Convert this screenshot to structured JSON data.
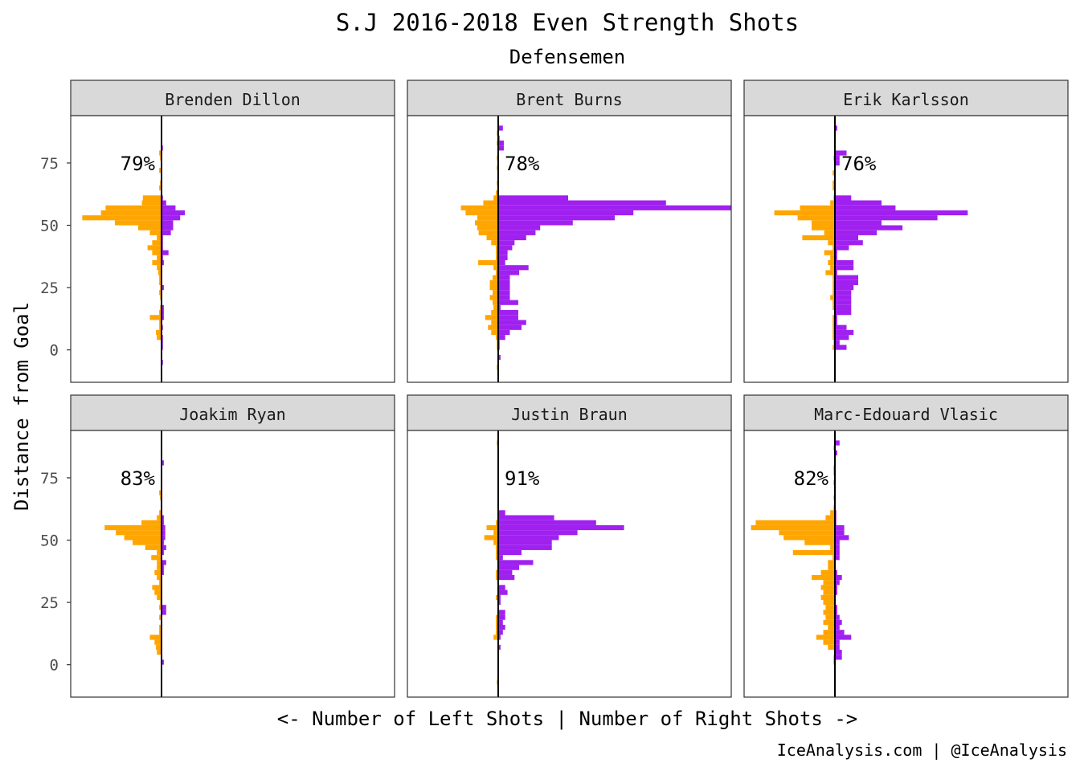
{
  "chart_data": {
    "type": "bar",
    "orientation": "horizontal",
    "title": "S.J 2016-2018 Even Strength Shots",
    "subtitle": "Defensemen",
    "ylabel": "Distance from Goal",
    "xlabel": "<- Number of Left Shots | Number of Right Shots ->",
    "caption": "IceAnalysis.com | @IceAnalysis",
    "y_ticks": [
      0,
      25,
      50,
      75
    ],
    "ylim": [
      -13,
      94
    ],
    "colors": {
      "left": "#FFA500",
      "right": "#A020F0"
    },
    "panels": [
      {
        "player": "Brenden Dillon",
        "pct": "79%",
        "bins": [
          {
            "y": 81,
            "l": 0,
            "r": 0.3
          },
          {
            "y": 79,
            "l": 0.5,
            "r": 0
          },
          {
            "y": 77,
            "l": 0.3,
            "r": 0
          },
          {
            "y": 72,
            "l": 0.5,
            "r": 0
          },
          {
            "y": 67,
            "l": 0.3,
            "r": 0
          },
          {
            "y": 65,
            "l": 0.5,
            "r": 0
          },
          {
            "y": 61,
            "l": 4,
            "r": 0.3
          },
          {
            "y": 59,
            "l": 4.2,
            "r": 1
          },
          {
            "y": 57,
            "l": 12,
            "r": 3
          },
          {
            "y": 55,
            "l": 13,
            "r": 5
          },
          {
            "y": 53,
            "l": 17,
            "r": 4
          },
          {
            "y": 51,
            "l": 10,
            "r": 2.5
          },
          {
            "y": 49,
            "l": 5,
            "r": 2.5
          },
          {
            "y": 47,
            "l": 2.5,
            "r": 2
          },
          {
            "y": 45,
            "l": 1,
            "r": 0.3
          },
          {
            "y": 43,
            "l": 2,
            "r": 0.3
          },
          {
            "y": 41,
            "l": 3,
            "r": 0.3
          },
          {
            "y": 39,
            "l": 2,
            "r": 1.5
          },
          {
            "y": 37,
            "l": 1,
            "r": 0.3
          },
          {
            "y": 35,
            "l": 2,
            "r": 0.5
          },
          {
            "y": 33,
            "l": 1,
            "r": 0
          },
          {
            "y": 31,
            "l": 0.7,
            "r": 0
          },
          {
            "y": 29,
            "l": 0.5,
            "r": 0
          },
          {
            "y": 27,
            "l": 0.5,
            "r": 0
          },
          {
            "y": 25,
            "l": 0.3,
            "r": 0.5
          },
          {
            "y": 23,
            "l": 0.5,
            "r": 0
          },
          {
            "y": 21,
            "l": 0.3,
            "r": 0
          },
          {
            "y": 17,
            "l": 0.3,
            "r": 0.5
          },
          {
            "y": 15,
            "l": 0.5,
            "r": 0.5
          },
          {
            "y": 13,
            "l": 2.5,
            "r": 0.5
          },
          {
            "y": 11,
            "l": 0.5,
            "r": 0
          },
          {
            "y": 9,
            "l": 0.5,
            "r": 0.3
          },
          {
            "y": 7,
            "l": 1.2,
            "r": 0
          },
          {
            "y": 5,
            "l": 1,
            "r": 0.3
          },
          {
            "y": 3,
            "l": 0,
            "r": 0.3
          },
          {
            "y": 1,
            "l": 0,
            "r": 0.3
          },
          {
            "y": -5,
            "l": 0,
            "r": 0.3
          }
        ]
      },
      {
        "player": "Brent Burns",
        "pct": "78%",
        "bins": [
          {
            "y": 89,
            "l": 0,
            "r": 1
          },
          {
            "y": 87,
            "l": 0.3,
            "r": 0
          },
          {
            "y": 85,
            "l": 0,
            "r": 0.3
          },
          {
            "y": 83,
            "l": 0.3,
            "r": 1.2
          },
          {
            "y": 81,
            "l": 0,
            "r": 1.2
          },
          {
            "y": 77,
            "l": 0.3,
            "r": 0
          },
          {
            "y": 73,
            "l": 0.3,
            "r": 0
          },
          {
            "y": 67,
            "l": 0.3,
            "r": 0
          },
          {
            "y": 63,
            "l": 0.5,
            "r": 0
          },
          {
            "y": 61,
            "l": 1,
            "r": 15
          },
          {
            "y": 59,
            "l": 3.2,
            "r": 36
          },
          {
            "y": 57,
            "l": 8,
            "r": 50
          },
          {
            "y": 55,
            "l": 7,
            "r": 29
          },
          {
            "y": 53,
            "l": 4.5,
            "r": 25
          },
          {
            "y": 51,
            "l": 5,
            "r": 16
          },
          {
            "y": 49,
            "l": 4.5,
            "r": 9
          },
          {
            "y": 47,
            "l": 4.2,
            "r": 8
          },
          {
            "y": 45,
            "l": 2.5,
            "r": 6
          },
          {
            "y": 43,
            "l": 1.5,
            "r": 3.5
          },
          {
            "y": 41,
            "l": 0.5,
            "r": 3
          },
          {
            "y": 39,
            "l": 0.5,
            "r": 2
          },
          {
            "y": 37,
            "l": 0.5,
            "r": 2
          },
          {
            "y": 35,
            "l": 4.3,
            "r": 1.5
          },
          {
            "y": 33,
            "l": 1,
            "r": 6.5
          },
          {
            "y": 31,
            "l": 0.5,
            "r": 4.5
          },
          {
            "y": 29,
            "l": 1.2,
            "r": 2.5
          },
          {
            "y": 27,
            "l": 1.8,
            "r": 2.5
          },
          {
            "y": 25,
            "l": 1.8,
            "r": 2.5
          },
          {
            "y": 23,
            "l": 1.2,
            "r": 2.5
          },
          {
            "y": 21,
            "l": 1.8,
            "r": 2.5
          },
          {
            "y": 19,
            "l": 1.2,
            "r": 4.3
          },
          {
            "y": 17,
            "l": 1,
            "r": 0.5
          },
          {
            "y": 15,
            "l": 1.5,
            "r": 4.3
          },
          {
            "y": 13,
            "l": 2.8,
            "r": 4.3
          },
          {
            "y": 11,
            "l": 1.5,
            "r": 6
          },
          {
            "y": 9,
            "l": 2.2,
            "r": 5
          },
          {
            "y": 7,
            "l": 1.5,
            "r": 2.5
          },
          {
            "y": 5,
            "l": 0.5,
            "r": 1.5
          },
          {
            "y": 3,
            "l": 0.3,
            "r": 0.3
          },
          {
            "y": 1,
            "l": 0.3,
            "r": 0.3
          },
          {
            "y": -3,
            "l": 0,
            "r": 0.5
          },
          {
            "y": -7,
            "l": 0.3,
            "r": 0
          }
        ]
      },
      {
        "player": "Erik Karlsson",
        "pct": "76%",
        "bins": [
          {
            "y": 89,
            "l": 0,
            "r": 0.5
          },
          {
            "y": 79,
            "l": 0,
            "r": 2.5
          },
          {
            "y": 77,
            "l": 0.3,
            "r": 1
          },
          {
            "y": 75,
            "l": 0,
            "r": 1
          },
          {
            "y": 71,
            "l": 0.5,
            "r": 0
          },
          {
            "y": 67,
            "l": 0.5,
            "r": 0
          },
          {
            "y": 65,
            "l": 0.5,
            "r": 0
          },
          {
            "y": 61,
            "l": 0.3,
            "r": 3.5
          },
          {
            "y": 59,
            "l": 1,
            "r": 10
          },
          {
            "y": 57,
            "l": 7.5,
            "r": 13
          },
          {
            "y": 55,
            "l": 13,
            "r": 28.5
          },
          {
            "y": 53,
            "l": 8,
            "r": 22
          },
          {
            "y": 51,
            "l": 5,
            "r": 10
          },
          {
            "y": 49,
            "l": 5,
            "r": 14.5
          },
          {
            "y": 47,
            "l": 2.3,
            "r": 9
          },
          {
            "y": 45,
            "l": 7,
            "r": 5
          },
          {
            "y": 43,
            "l": 1.5,
            "r": 6
          },
          {
            "y": 41,
            "l": 0.5,
            "r": 3
          },
          {
            "y": 39,
            "l": 2.3,
            "r": 0.5
          },
          {
            "y": 37,
            "l": 1,
            "r": 0.5
          },
          {
            "y": 35,
            "l": 1.5,
            "r": 4
          },
          {
            "y": 33,
            "l": 1,
            "r": 4
          },
          {
            "y": 31,
            "l": 2,
            "r": 0.5
          },
          {
            "y": 29,
            "l": 0.5,
            "r": 5
          },
          {
            "y": 27,
            "l": 0.5,
            "r": 5
          },
          {
            "y": 25,
            "l": 0.5,
            "r": 4
          },
          {
            "y": 23,
            "l": 0.5,
            "r": 3.5
          },
          {
            "y": 21,
            "l": 1,
            "r": 3.5
          },
          {
            "y": 19,
            "l": 0.5,
            "r": 3.5
          },
          {
            "y": 17,
            "l": 0.5,
            "r": 3.5
          },
          {
            "y": 15,
            "l": 0,
            "r": 3.5
          },
          {
            "y": 13,
            "l": 0.5,
            "r": 0.5
          },
          {
            "y": 11,
            "l": 0.5,
            "r": 0.5
          },
          {
            "y": 9,
            "l": 0.5,
            "r": 2.5
          },
          {
            "y": 7,
            "l": 0.5,
            "r": 4
          },
          {
            "y": 5,
            "l": 0.5,
            "r": 3
          },
          {
            "y": 3,
            "l": 0.3,
            "r": 1
          },
          {
            "y": 1,
            "l": 0.5,
            "r": 2.5
          }
        ]
      },
      {
        "player": "Joakim Ryan",
        "pct": "83%",
        "bins": [
          {
            "y": 81,
            "l": 0,
            "r": 0.5
          },
          {
            "y": 69,
            "l": 0.5,
            "r": 0
          },
          {
            "y": 67,
            "l": 0.3,
            "r": 0
          },
          {
            "y": 61,
            "l": 0.5,
            "r": 0
          },
          {
            "y": 59,
            "l": 1,
            "r": 0.5
          },
          {
            "y": 57,
            "l": 4.3,
            "r": 0.5
          },
          {
            "y": 55,
            "l": 12.2,
            "r": 0.8
          },
          {
            "y": 53,
            "l": 9.8,
            "r": 0.8
          },
          {
            "y": 51,
            "l": 8,
            "r": 0.8
          },
          {
            "y": 49,
            "l": 6.2,
            "r": 0.5
          },
          {
            "y": 47,
            "l": 3.5,
            "r": 1
          },
          {
            "y": 45,
            "l": 1,
            "r": 0.5
          },
          {
            "y": 43,
            "l": 2.2,
            "r": 0
          },
          {
            "y": 41,
            "l": 1,
            "r": 1
          },
          {
            "y": 39,
            "l": 1,
            "r": 0.5
          },
          {
            "y": 37,
            "l": 1.5,
            "r": 0.5
          },
          {
            "y": 35,
            "l": 1,
            "r": 0
          },
          {
            "y": 33,
            "l": 0.5,
            "r": 0
          },
          {
            "y": 31,
            "l": 2,
            "r": 0
          },
          {
            "y": 29,
            "l": 1.5,
            "r": 0
          },
          {
            "y": 27,
            "l": 1,
            "r": 0
          },
          {
            "y": 25,
            "l": 0.3,
            "r": 0
          },
          {
            "y": 23,
            "l": 0.5,
            "r": 1
          },
          {
            "y": 21,
            "l": 0,
            "r": 1
          },
          {
            "y": 19,
            "l": 0.5,
            "r": 0
          },
          {
            "y": 15,
            "l": 0.5,
            "r": 0
          },
          {
            "y": 13,
            "l": 0.5,
            "r": 0
          },
          {
            "y": 11,
            "l": 2.5,
            "r": 0
          },
          {
            "y": 9,
            "l": 1.5,
            "r": 0
          },
          {
            "y": 7,
            "l": 1.2,
            "r": 0
          },
          {
            "y": 5,
            "l": 1,
            "r": 0
          },
          {
            "y": 1,
            "l": 0,
            "r": 0.5
          }
        ]
      },
      {
        "player": "Justin Braun",
        "pct": "91%",
        "bins": [
          {
            "y": 89,
            "l": 0.3,
            "r": 0
          },
          {
            "y": 61,
            "l": 0,
            "r": 1.5
          },
          {
            "y": 59,
            "l": 0,
            "r": 12
          },
          {
            "y": 57,
            "l": 0.5,
            "r": 21
          },
          {
            "y": 55,
            "l": 2.5,
            "r": 27
          },
          {
            "y": 53,
            "l": 1,
            "r": 17
          },
          {
            "y": 51,
            "l": 3,
            "r": 13
          },
          {
            "y": 49,
            "l": 1,
            "r": 11.5
          },
          {
            "y": 47,
            "l": 0.5,
            "r": 11.5
          },
          {
            "y": 45,
            "l": 0.5,
            "r": 5
          },
          {
            "y": 43,
            "l": 0.5,
            "r": 1
          },
          {
            "y": 41,
            "l": 0,
            "r": 7.5
          },
          {
            "y": 39,
            "l": 0,
            "r": 4.5
          },
          {
            "y": 37,
            "l": 0.5,
            "r": 3
          },
          {
            "y": 35,
            "l": 0.5,
            "r": 3.5
          },
          {
            "y": 31,
            "l": 0,
            "r": 1.5
          },
          {
            "y": 29,
            "l": 0,
            "r": 2
          },
          {
            "y": 27,
            "l": 0.5,
            "r": 0.5
          },
          {
            "y": 25,
            "l": 0,
            "r": 0.5
          },
          {
            "y": 21,
            "l": 0,
            "r": 1.5
          },
          {
            "y": 19,
            "l": 0.5,
            "r": 1.5
          },
          {
            "y": 17,
            "l": 0.5,
            "r": 1
          },
          {
            "y": 15,
            "l": 0.5,
            "r": 1.5
          },
          {
            "y": 13,
            "l": 0.5,
            "r": 1
          },
          {
            "y": 11,
            "l": 1,
            "r": 0.5
          },
          {
            "y": 7,
            "l": 0,
            "r": 0.5
          },
          {
            "y": -7,
            "l": 0.3,
            "r": 0
          }
        ]
      },
      {
        "player": "Marc-Edouard Vlasic",
        "pct": "82%",
        "bins": [
          {
            "y": 89,
            "l": 0,
            "r": 1
          },
          {
            "y": 87,
            "l": 0.3,
            "r": 0
          },
          {
            "y": 85,
            "l": 0,
            "r": 0.5
          },
          {
            "y": 79,
            "l": 0.3,
            "r": 0
          },
          {
            "y": 77,
            "l": 0.3,
            "r": 0
          },
          {
            "y": 73,
            "l": 0.3,
            "r": 0
          },
          {
            "y": 67,
            "l": 0.3,
            "r": 0
          },
          {
            "y": 63,
            "l": 0.3,
            "r": 0
          },
          {
            "y": 61,
            "l": 1,
            "r": 0.3
          },
          {
            "y": 59,
            "l": 2,
            "r": 0.3
          },
          {
            "y": 57,
            "l": 17,
            "r": 0.3
          },
          {
            "y": 55,
            "l": 18,
            "r": 2
          },
          {
            "y": 53,
            "l": 12,
            "r": 2
          },
          {
            "y": 51,
            "l": 11,
            "r": 3
          },
          {
            "y": 49,
            "l": 6.5,
            "r": 1
          },
          {
            "y": 47,
            "l": 1,
            "r": 1
          },
          {
            "y": 45,
            "l": 9,
            "r": 1
          },
          {
            "y": 43,
            "l": 0.5,
            "r": 1
          },
          {
            "y": 41,
            "l": 1.5,
            "r": 0
          },
          {
            "y": 39,
            "l": 1.5,
            "r": 0
          },
          {
            "y": 37,
            "l": 3,
            "r": 0.5
          },
          {
            "y": 35,
            "l": 5,
            "r": 1.5
          },
          {
            "y": 33,
            "l": 2.5,
            "r": 1
          },
          {
            "y": 31,
            "l": 3,
            "r": 0.5
          },
          {
            "y": 29,
            "l": 2.5,
            "r": 0.5
          },
          {
            "y": 27,
            "l": 3,
            "r": 0
          },
          {
            "y": 25,
            "l": 2.5,
            "r": 0
          },
          {
            "y": 23,
            "l": 2,
            "r": 0.5
          },
          {
            "y": 21,
            "l": 2.5,
            "r": 0.5
          },
          {
            "y": 19,
            "l": 2,
            "r": 1
          },
          {
            "y": 17,
            "l": 2.5,
            "r": 1.5
          },
          {
            "y": 15,
            "l": 1.5,
            "r": 1
          },
          {
            "y": 13,
            "l": 2.5,
            "r": 2
          },
          {
            "y": 11,
            "l": 4,
            "r": 3.5
          },
          {
            "y": 9,
            "l": 2.5,
            "r": 1
          },
          {
            "y": 7,
            "l": 1.5,
            "r": 1
          },
          {
            "y": 5,
            "l": 0,
            "r": 1.5
          },
          {
            "y": 3,
            "l": 0.3,
            "r": 1.5
          },
          {
            "y": 1,
            "l": 0.3,
            "r": 0
          }
        ]
      }
    ]
  }
}
